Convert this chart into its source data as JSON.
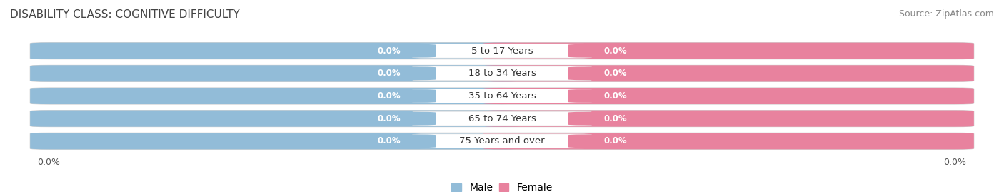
{
  "title": "DISABILITY CLASS: COGNITIVE DIFFICULTY",
  "source": "Source: ZipAtlas.com",
  "categories": [
    "5 to 17 Years",
    "18 to 34 Years",
    "35 to 64 Years",
    "65 to 74 Years",
    "75 Years and over"
  ],
  "male_values": [
    0.0,
    0.0,
    0.0,
    0.0,
    0.0
  ],
  "female_values": [
    0.0,
    0.0,
    0.0,
    0.0,
    0.0
  ],
  "male_color": "#92bcd8",
  "female_color": "#e8829e",
  "bar_bg_color": "#ebebeb",
  "bar_border_color": "#d0d0d0",
  "cat_pill_color": "#ffffff",
  "cat_pill_border": "#dddddd",
  "title_fontsize": 11,
  "source_fontsize": 9,
  "label_fontsize": 9,
  "cat_fontsize": 9.5,
  "tick_fontsize": 9,
  "fig_bg_color": "#ffffff",
  "axis_bg_color": "#ffffff",
  "legend_male_label": "Male",
  "legend_female_label": "Female",
  "x_left_label": "0.0%",
  "x_right_label": "0.0%"
}
